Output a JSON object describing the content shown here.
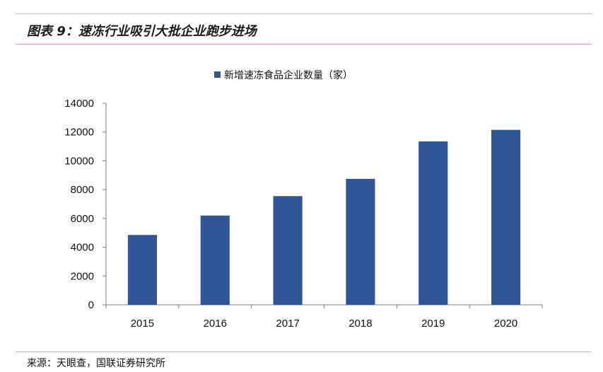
{
  "figure": {
    "title": "图表 9：速冻行业吸引大批企业跑步进场",
    "source": "来源：天眼查，国联证券研究所"
  },
  "chart_data": {
    "type": "bar",
    "categories": [
      "2015",
      "2016",
      "2017",
      "2018",
      "2019",
      "2020"
    ],
    "series": [
      {
        "name": "新增速冻食品企业数量（家）",
        "values": [
          4850,
          6200,
          7550,
          8750,
          11350,
          12150
        ],
        "color": "#2f5597"
      }
    ],
    "ylim": [
      0,
      14000
    ],
    "yticks": [
      0,
      2000,
      4000,
      6000,
      8000,
      10000,
      12000,
      14000
    ],
    "legend_position": "top-center",
    "grid": false
  }
}
